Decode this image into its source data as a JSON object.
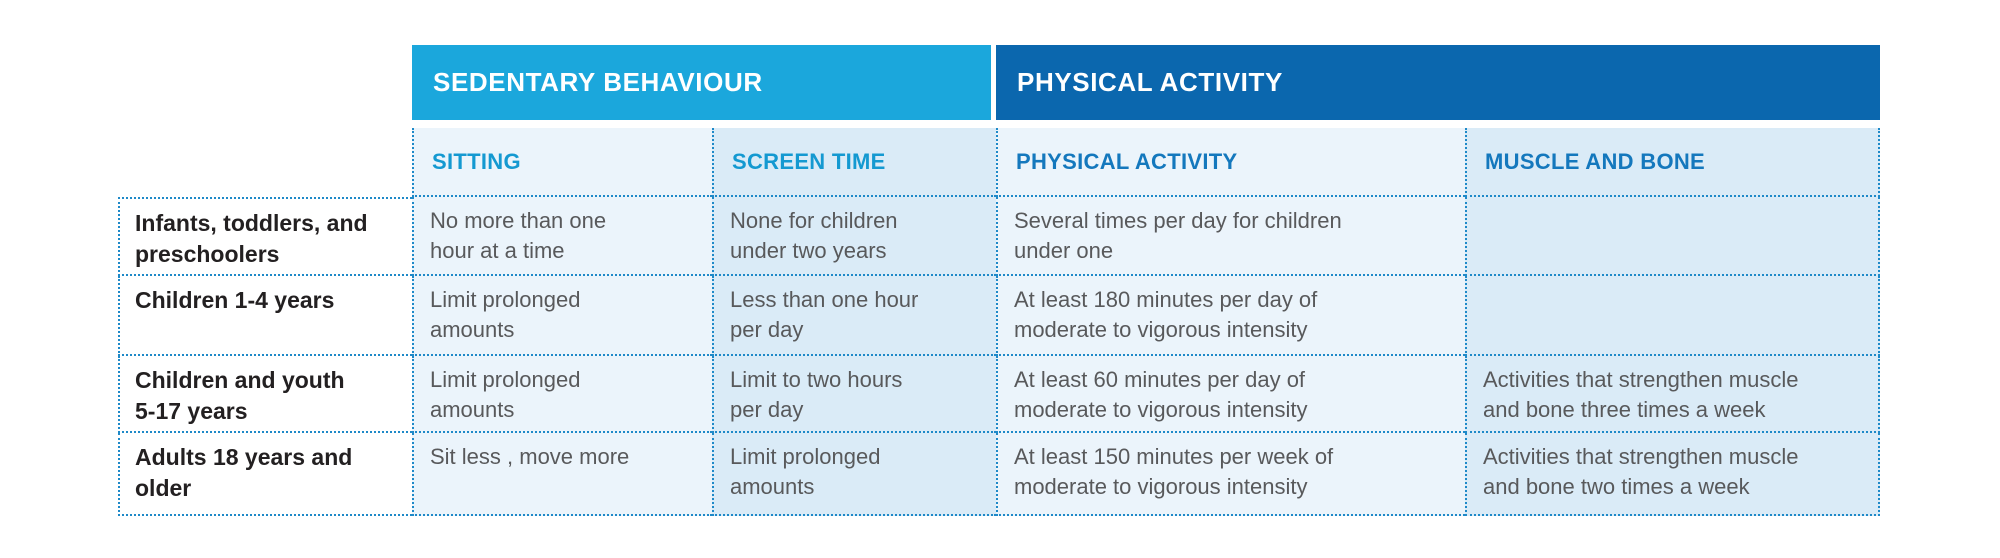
{
  "chart_data": {
    "type": "table",
    "group_headers": [
      {
        "label": "SEDENTARY BEHAVIOUR",
        "bg": "#1BA7DC",
        "text_color": "#FFFFFF",
        "spans_columns": [
          "SITTING",
          "SCREEN TIME"
        ]
      },
      {
        "label": "PHYSICAL ACTIVITY",
        "bg": "#0B67AE",
        "text_color": "#FFFFFF",
        "spans_columns": [
          "PHYSICAL ACTIVITY",
          "MUSCLE AND BONE"
        ]
      }
    ],
    "columns": [
      {
        "label": "SITTING",
        "group": "SEDENTARY BEHAVIOUR"
      },
      {
        "label": "SCREEN TIME",
        "group": "SEDENTARY BEHAVIOUR"
      },
      {
        "label": "PHYSICAL ACTIVITY",
        "group": "PHYSICAL ACTIVITY"
      },
      {
        "label": "MUSCLE AND BONE",
        "group": "PHYSICAL ACTIVITY"
      }
    ],
    "rows": [
      {
        "label": "Infants, toddlers, and\npreschoolers",
        "cells": [
          "No more than one\nhour at a time",
          "None for children\nunder two years",
          "Several times per day for children\nunder one",
          ""
        ]
      },
      {
        "label": "Children 1-4 years",
        "cells": [
          "Limit prolonged\namounts",
          "Less than one hour\nper day",
          "At least 180 minutes per day of\nmoderate to vigorous intensity",
          ""
        ]
      },
      {
        "label": "Children and youth\n5-17 years",
        "cells": [
          "Limit prolonged\namounts",
          "Limit to two hours\nper day",
          "At least 60 minutes per day of\nmoderate to vigorous intensity",
          "Activities that strengthen muscle\nand bone three times a week"
        ]
      },
      {
        "label": "Adults 18 years and\nolder",
        "cells": [
          "Sit less , move more",
          "Limit prolonged\namounts",
          "At least 150 minutes per week of\nmoderate to vigorous intensity",
          "Activities that strengthen muscle\nand bone two times a week"
        ]
      }
    ],
    "layout": {
      "grid": "dotted",
      "legend_position": "none"
    }
  },
  "colors": {
    "sedentary_band_bg": "#1BA7DC",
    "physical_band_bg": "#0B67AE",
    "band_text": "#FFFFFF",
    "sedentary_column_header_text": "#1499D1",
    "physical_column_header_text": "#1478BD",
    "column_bg_light": "#EBF4FB",
    "column_bg_dark": "#DAEBF7",
    "row_label_bg": "#FFFFFF",
    "row_label_text": "#232021",
    "cell_text": "#58595B",
    "dotted_border": "#1E89C8",
    "page_bg": "#FFFFFF"
  }
}
